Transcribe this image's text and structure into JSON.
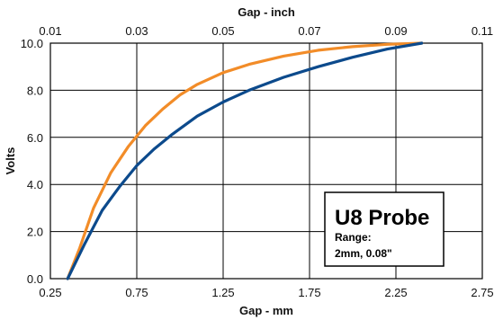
{
  "chart_data": {
    "type": "line",
    "title": "",
    "xlabel": "Gap - mm",
    "x2label": "Gap - inch",
    "ylabel": "Volts",
    "xlim": [
      0.25,
      2.75
    ],
    "x2lim": [
      0.01,
      0.11
    ],
    "ylim": [
      0.0,
      10.0
    ],
    "xticks": [
      "0.25",
      "0.75",
      "1.25",
      "1.75",
      "2.25",
      "2.75"
    ],
    "x2ticks": [
      "0.01",
      "0.03",
      "0.05",
      "0.07",
      "0.09",
      "0.11"
    ],
    "yticks": [
      "0.0",
      "2.0",
      "4.0",
      "6.0",
      "8.0",
      "10.0"
    ],
    "grid": true,
    "series": [
      {
        "color": "#F28C28",
        "x": [
          0.35,
          0.42,
          0.5,
          0.6,
          0.7,
          0.8,
          0.9,
          1.0,
          1.1,
          1.25,
          1.4,
          1.6,
          1.8,
          2.0,
          2.2,
          2.4
        ],
        "y": [
          0.0,
          1.3,
          3.0,
          4.5,
          5.6,
          6.5,
          7.2,
          7.8,
          8.25,
          8.75,
          9.1,
          9.45,
          9.7,
          9.85,
          9.95,
          10.0
        ]
      },
      {
        "color": "#0C4A8C",
        "x": [
          0.35,
          0.45,
          0.55,
          0.65,
          0.75,
          0.85,
          0.95,
          1.1,
          1.25,
          1.4,
          1.6,
          1.8,
          2.0,
          2.2,
          2.4
        ],
        "y": [
          0.0,
          1.5,
          2.9,
          3.9,
          4.8,
          5.5,
          6.1,
          6.9,
          7.5,
          8.0,
          8.55,
          9.0,
          9.4,
          9.75,
          10.0
        ]
      }
    ],
    "annotation": {
      "title": "U8 Probe",
      "line1": "Range:",
      "line2": "2mm, 0.08\""
    }
  }
}
